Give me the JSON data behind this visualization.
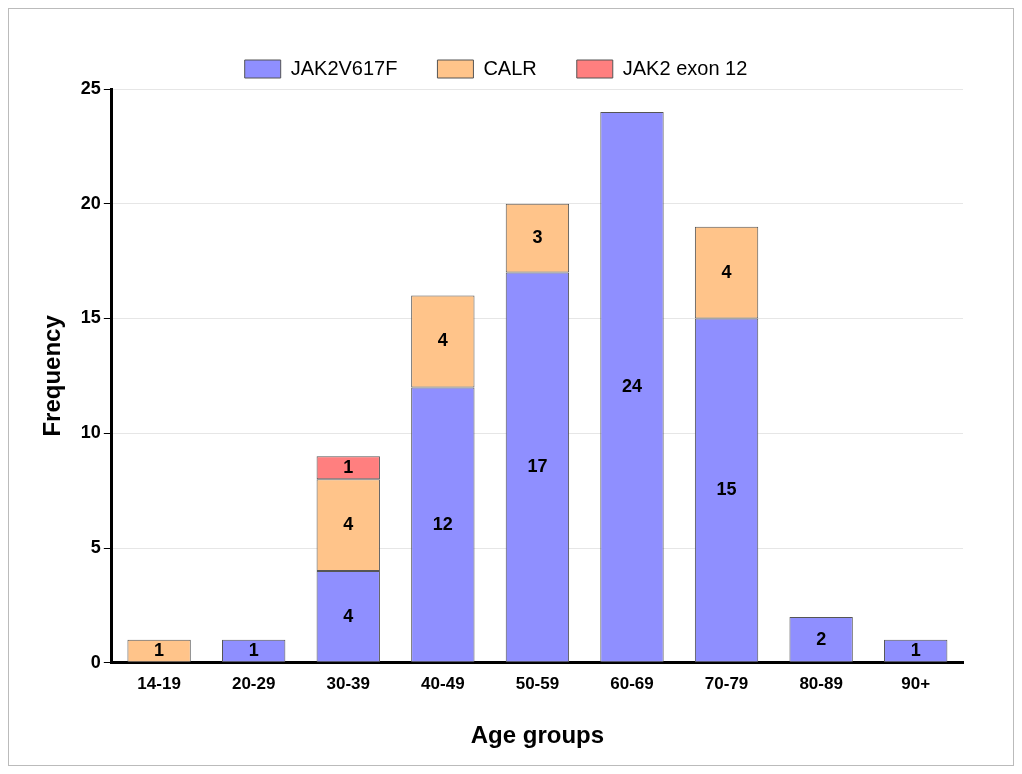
{
  "chart_data": {
    "type": "bar",
    "stacked": true,
    "xlabel": "Age groups",
    "ylabel": "Frequency",
    "categories": [
      "14-19",
      "20-29",
      "30-39",
      "40-49",
      "50-59",
      "60-69",
      "70-79",
      "80-89",
      "90+"
    ],
    "series": [
      {
        "name": "JAK2V617F",
        "color": "#8f8fff",
        "values": [
          null,
          1,
          4,
          12,
          17,
          24,
          15,
          2,
          1
        ]
      },
      {
        "name": "CALR",
        "color": "#ffc48a",
        "values": [
          1,
          null,
          4,
          4,
          3,
          null,
          4,
          null,
          null
        ]
      },
      {
        "name": "JAK2 exon 12",
        "color": "#ff7f7f",
        "values": [
          null,
          null,
          1,
          null,
          null,
          null,
          null,
          null,
          null
        ]
      }
    ],
    "ylim": [
      0,
      25
    ],
    "yticks": [
      0,
      5,
      10,
      15,
      20,
      25
    ],
    "grid": "y",
    "legend": "top",
    "data_labels": true
  }
}
